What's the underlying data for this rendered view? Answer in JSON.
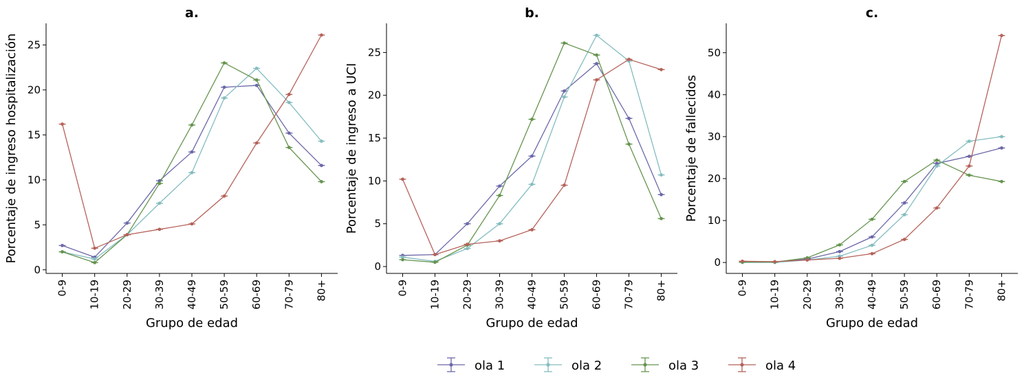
{
  "chart_data": [
    {
      "type": "line",
      "title": "a.",
      "xlabel": "Grupo de edad",
      "ylabel": "Porcentaje de ingreso hospitalización",
      "ylim": [
        -0.4,
        27.4
      ],
      "yticks": [
        0,
        5,
        10,
        15,
        20,
        25
      ],
      "categories": [
        "0-9",
        "10-19",
        "20-29",
        "30-39",
        "40-49",
        "50-59",
        "60-69",
        "70-79",
        "80+"
      ],
      "series": [
        {
          "name": "ola 1",
          "values": [
            2.7,
            1.4,
            5.2,
            9.9,
            13.1,
            20.3,
            20.5,
            15.2,
            11.6
          ]
        },
        {
          "name": "ola 2",
          "values": [
            2.0,
            1.2,
            3.9,
            7.4,
            10.8,
            19.1,
            22.4,
            18.6,
            14.3
          ]
        },
        {
          "name": "ola 3",
          "values": [
            2.0,
            0.8,
            3.9,
            9.6,
            16.1,
            23.0,
            21.1,
            13.6,
            9.8
          ]
        },
        {
          "name": "ola 4",
          "values": [
            16.2,
            2.4,
            3.9,
            4.5,
            5.1,
            8.2,
            14.1,
            19.5,
            26.1
          ]
        }
      ]
    },
    {
      "type": "line",
      "title": "b.",
      "xlabel": "Grupo de edad",
      "ylabel": "Porcentaje de ingreso a UCI",
      "ylim": [
        -0.8,
        28.4
      ],
      "yticks": [
        0,
        5,
        10,
        15,
        20,
        25
      ],
      "categories": [
        "0-9",
        "10-19",
        "20-29",
        "30-39",
        "40-49",
        "50-59",
        "60-69",
        "70-79",
        "80+"
      ],
      "series": [
        {
          "name": "ola 1",
          "values": [
            1.3,
            1.4,
            5.0,
            9.4,
            12.9,
            20.5,
            23.7,
            17.3,
            8.4
          ]
        },
        {
          "name": "ola 2",
          "values": [
            1.1,
            0.6,
            2.1,
            5.0,
            9.6,
            19.8,
            27.0,
            24.0,
            10.7
          ]
        },
        {
          "name": "ola 3",
          "values": [
            0.8,
            0.5,
            2.5,
            8.3,
            17.2,
            26.1,
            24.7,
            14.3,
            5.6
          ]
        },
        {
          "name": "ola 4",
          "values": [
            10.2,
            1.4,
            2.6,
            3.0,
            4.3,
            9.5,
            21.8,
            24.2,
            23.0
          ]
        }
      ]
    },
    {
      "type": "line",
      "title": "c.",
      "xlabel": "Grupo de edad",
      "ylabel": "Porcentaje de fallecidos",
      "ylim": [
        -2.6,
        57
      ],
      "yticks": [
        0,
        10,
        20,
        30,
        40,
        50
      ],
      "categories": [
        "0-9",
        "10-19",
        "20-29",
        "30-39",
        "40-49",
        "50-59",
        "60-69",
        "70-79",
        "80+"
      ],
      "series": [
        {
          "name": "ola 1",
          "values": [
            0.1,
            0.1,
            0.8,
            2.6,
            6.1,
            14.2,
            23.6,
            25.3,
            27.3
          ]
        },
        {
          "name": "ola 2",
          "values": [
            0.0,
            0.0,
            0.6,
            1.5,
            4.1,
            11.4,
            23.0,
            28.9,
            30.0
          ]
        },
        {
          "name": "ola 3",
          "values": [
            0.1,
            0.1,
            1.1,
            4.2,
            10.3,
            19.3,
            24.4,
            20.8,
            19.3
          ]
        },
        {
          "name": "ola 4",
          "values": [
            0.3,
            0.2,
            0.6,
            1.0,
            2.1,
            5.5,
            13.0,
            23.0,
            54.1
          ]
        }
      ]
    }
  ],
  "legend": {
    "placement": "bottom-center",
    "entries": [
      "ola 1",
      "ola 2",
      "ola 3",
      "ola 4"
    ]
  },
  "colors": {
    "ola 1": "#6b68a8",
    "ola 2": "#84bcbf",
    "ola 3": "#66944f",
    "ola 4": "#b5625a"
  }
}
